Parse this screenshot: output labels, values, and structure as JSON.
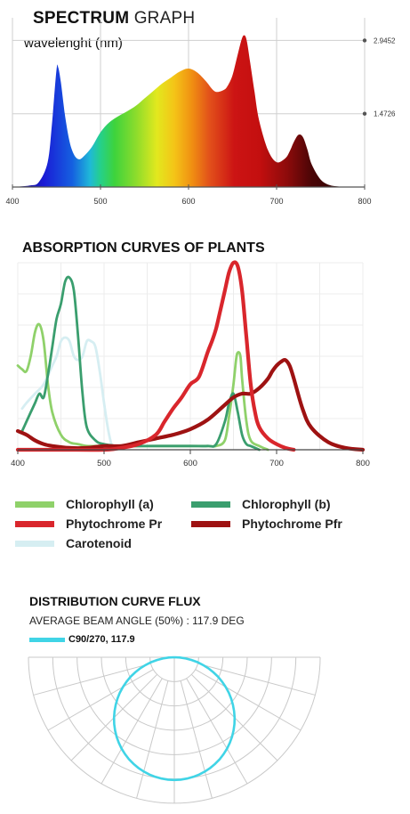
{
  "chart_data": [
    {
      "type": "area",
      "title_bold": "SPECTRUM",
      "title_light": "GRAPH",
      "subtitle": "wavelenght (nm)",
      "x_ticks": [
        "400",
        "500",
        "600",
        "700",
        "800"
      ],
      "y_ticks": [
        "2.9452",
        "1.4726"
      ],
      "xlim": [
        400,
        800
      ],
      "ylim": [
        0,
        3.4
      ],
      "x": [
        400,
        420,
        430,
        440,
        445,
        450,
        452,
        455,
        460,
        465,
        470,
        475,
        480,
        490,
        500,
        510,
        520,
        530,
        540,
        550,
        560,
        570,
        580,
        590,
        600,
        610,
        620,
        630,
        640,
        645,
        650,
        655,
        660,
        663,
        666,
        670,
        675,
        680,
        690,
        700,
        710,
        715,
        720,
        725,
        730,
        735,
        740,
        750,
        760,
        770,
        780,
        800
      ],
      "y": [
        0.0,
        0.03,
        0.1,
        0.5,
        1.3,
        2.35,
        2.4,
        2.1,
        1.4,
        0.9,
        0.65,
        0.56,
        0.6,
        0.8,
        1.1,
        1.3,
        1.42,
        1.52,
        1.63,
        1.78,
        1.93,
        2.08,
        2.2,
        2.32,
        2.38,
        2.3,
        2.12,
        1.92,
        1.95,
        2.05,
        2.25,
        2.6,
        2.95,
        3.05,
        2.95,
        2.5,
        1.9,
        1.35,
        0.75,
        0.5,
        0.58,
        0.72,
        0.92,
        1.05,
        1.0,
        0.75,
        0.45,
        0.15,
        0.04,
        0.01,
        0.0,
        0.0
      ]
    },
    {
      "type": "line",
      "title": "ABSORPTION CURVES OF PLANTS",
      "x_ticks": [
        "400",
        "500",
        "600",
        "700",
        "800"
      ],
      "xlim": [
        400,
        800
      ],
      "ylim": [
        0,
        1.0
      ],
      "series": [
        {
          "name": "Chlorophyll (a)",
          "color": "#8fd16a",
          "x": [
            400,
            405,
            410,
            415,
            420,
            425,
            430,
            435,
            440,
            450,
            460,
            470,
            480,
            490,
            500,
            520,
            550,
            580,
            600,
            620,
            630,
            640,
            645,
            650,
            653,
            655,
            658,
            660,
            665,
            670,
            680,
            690
          ],
          "y": [
            0.45,
            0.43,
            0.42,
            0.5,
            0.63,
            0.67,
            0.58,
            0.35,
            0.2,
            0.08,
            0.04,
            0.03,
            0.02,
            0.02,
            0.02,
            0.02,
            0.02,
            0.02,
            0.02,
            0.02,
            0.02,
            0.05,
            0.18,
            0.35,
            0.48,
            0.52,
            0.5,
            0.38,
            0.15,
            0.05,
            0.02,
            0.0
          ]
        },
        {
          "name": "Chlorophyll (b)",
          "color": "#3a9e6e",
          "x": [
            405,
            410,
            415,
            420,
            425,
            430,
            435,
            440,
            445,
            450,
            455,
            460,
            465,
            470,
            475,
            480,
            490,
            500,
            520,
            560,
            600,
            620,
            630,
            640,
            645,
            650,
            655,
            660,
            665,
            670,
            680
          ],
          "y": [
            0.1,
            0.15,
            0.2,
            0.25,
            0.3,
            0.28,
            0.4,
            0.55,
            0.7,
            0.78,
            0.9,
            0.92,
            0.85,
            0.6,
            0.3,
            0.12,
            0.05,
            0.03,
            0.02,
            0.02,
            0.02,
            0.02,
            0.03,
            0.15,
            0.25,
            0.3,
            0.2,
            0.08,
            0.03,
            0.02,
            0.0
          ]
        },
        {
          "name": "Phytochrome Pr",
          "color": "#d9262c",
          "x": [
            400,
            450,
            500,
            520,
            540,
            560,
            570,
            580,
            590,
            600,
            610,
            620,
            625,
            630,
            635,
            640,
            645,
            650,
            655,
            660,
            665,
            670,
            675,
            680,
            690,
            700,
            710,
            720
          ],
          "y": [
            0.0,
            0.0,
            0.0,
            0.01,
            0.03,
            0.08,
            0.15,
            0.22,
            0.28,
            0.35,
            0.39,
            0.52,
            0.58,
            0.65,
            0.75,
            0.85,
            0.95,
            1.0,
            0.98,
            0.85,
            0.6,
            0.35,
            0.2,
            0.12,
            0.06,
            0.03,
            0.01,
            0.0
          ]
        },
        {
          "name": "Phytochrome Pfr",
          "color": "#9e1212",
          "x": [
            400,
            410,
            420,
            430,
            440,
            460,
            480,
            500,
            520,
            540,
            560,
            580,
            600,
            620,
            640,
            650,
            660,
            670,
            680,
            690,
            695,
            700,
            705,
            710,
            715,
            720,
            730,
            740,
            760,
            780,
            800
          ],
          "y": [
            0.1,
            0.08,
            0.05,
            0.03,
            0.02,
            0.01,
            0.01,
            0.02,
            0.02,
            0.04,
            0.06,
            0.08,
            0.11,
            0.16,
            0.24,
            0.28,
            0.3,
            0.3,
            0.33,
            0.38,
            0.42,
            0.45,
            0.47,
            0.48,
            0.45,
            0.38,
            0.22,
            0.12,
            0.04,
            0.01,
            0.0
          ]
        },
        {
          "name": "Carotenoid",
          "color": "#d6eef2",
          "x": [
            405,
            410,
            420,
            430,
            440,
            445,
            450,
            455,
            460,
            465,
            470,
            475,
            480,
            485,
            490,
            495,
            500,
            505,
            510
          ],
          "y": [
            0.22,
            0.25,
            0.3,
            0.35,
            0.45,
            0.5,
            0.58,
            0.6,
            0.58,
            0.5,
            0.48,
            0.5,
            0.58,
            0.58,
            0.55,
            0.42,
            0.25,
            0.1,
            0.0
          ]
        }
      ]
    },
    {
      "type": "polar",
      "title": "DISTRIBUTION CURVE FLUX",
      "subtitle": "AVERAGE BEAM ANGLE  (50%) : 117.9 DEG",
      "series": [
        {
          "name": "C90/270, 117.9",
          "color": "#40d4e6"
        }
      ],
      "beam_angle_deg": 117.9
    }
  ]
}
